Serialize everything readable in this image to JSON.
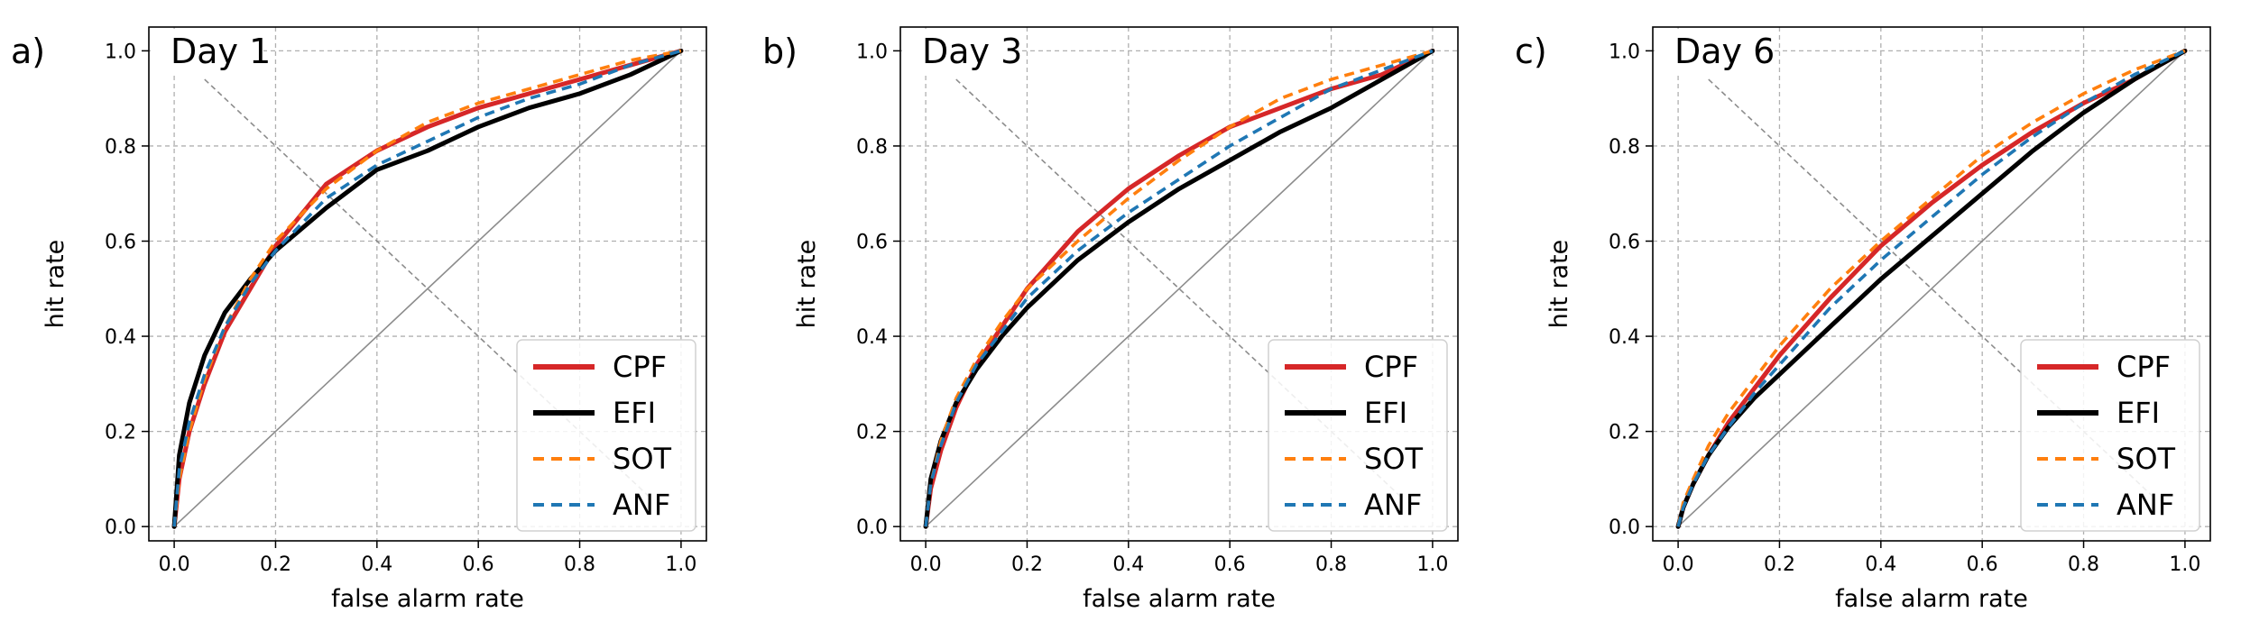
{
  "chart_data": [
    {
      "type": "line",
      "panel_label": "a)",
      "title": "Day 1",
      "xlabel": "false alarm rate",
      "ylabel": "hit rate",
      "xlim": [
        -0.05,
        1.05
      ],
      "ylim": [
        -0.03,
        1.05
      ],
      "xticks": [
        "0.0",
        "0.2",
        "0.4",
        "0.6",
        "0.8",
        "1.0"
      ],
      "yticks": [
        "0.0",
        "0.2",
        "0.4",
        "0.6",
        "0.8",
        "1.0"
      ],
      "grid": true,
      "legend_position": "lower right",
      "series": [
        {
          "name": "CPF",
          "color": "#d62728",
          "style": "solid",
          "x": [
            0,
            0.01,
            0.03,
            0.06,
            0.1,
            0.15,
            0.2,
            0.3,
            0.4,
            0.5,
            0.6,
            0.7,
            0.8,
            0.9,
            1.0
          ],
          "y": [
            0,
            0.1,
            0.2,
            0.3,
            0.41,
            0.5,
            0.59,
            0.72,
            0.79,
            0.84,
            0.88,
            0.91,
            0.94,
            0.97,
            1.0
          ]
        },
        {
          "name": "EFI",
          "color": "#000000",
          "style": "solid",
          "x": [
            0,
            0.01,
            0.03,
            0.06,
            0.1,
            0.15,
            0.2,
            0.3,
            0.4,
            0.5,
            0.6,
            0.7,
            0.8,
            0.9,
            1.0
          ],
          "y": [
            0,
            0.15,
            0.26,
            0.36,
            0.45,
            0.52,
            0.58,
            0.67,
            0.75,
            0.79,
            0.84,
            0.88,
            0.91,
            0.95,
            1.0
          ]
        },
        {
          "name": "SOT",
          "color": "#ff7f0e",
          "style": "dashed",
          "x": [
            0,
            0.01,
            0.03,
            0.06,
            0.1,
            0.15,
            0.2,
            0.3,
            0.4,
            0.5,
            0.6,
            0.7,
            0.8,
            0.9,
            1.0
          ],
          "y": [
            0,
            0.1,
            0.2,
            0.31,
            0.42,
            0.52,
            0.6,
            0.71,
            0.79,
            0.85,
            0.89,
            0.92,
            0.95,
            0.98,
            1.0
          ]
        },
        {
          "name": "ANF",
          "color": "#1f77b4",
          "style": "dashed",
          "x": [
            0,
            0.01,
            0.03,
            0.06,
            0.1,
            0.15,
            0.2,
            0.3,
            0.4,
            0.5,
            0.6,
            0.7,
            0.8,
            0.9,
            1.0
          ],
          "y": [
            0,
            0.12,
            0.22,
            0.32,
            0.42,
            0.51,
            0.58,
            0.69,
            0.76,
            0.81,
            0.86,
            0.9,
            0.93,
            0.97,
            1.0
          ]
        }
      ]
    },
    {
      "type": "line",
      "panel_label": "b)",
      "title": "Day 3",
      "xlabel": "false alarm rate",
      "ylabel": "hit rate",
      "xlim": [
        -0.05,
        1.05
      ],
      "ylim": [
        -0.03,
        1.05
      ],
      "xticks": [
        "0.0",
        "0.2",
        "0.4",
        "0.6",
        "0.8",
        "1.0"
      ],
      "yticks": [
        "0.0",
        "0.2",
        "0.4",
        "0.6",
        "0.8",
        "1.0"
      ],
      "grid": true,
      "legend_position": "lower right",
      "series": [
        {
          "name": "CPF",
          "color": "#d62728",
          "style": "solid",
          "x": [
            0,
            0.01,
            0.03,
            0.06,
            0.1,
            0.15,
            0.2,
            0.3,
            0.4,
            0.5,
            0.6,
            0.7,
            0.8,
            0.9,
            1.0
          ],
          "y": [
            0,
            0.08,
            0.16,
            0.25,
            0.34,
            0.42,
            0.5,
            0.62,
            0.71,
            0.78,
            0.84,
            0.88,
            0.92,
            0.95,
            1.0
          ]
        },
        {
          "name": "EFI",
          "color": "#000000",
          "style": "solid",
          "x": [
            0,
            0.01,
            0.03,
            0.06,
            0.1,
            0.15,
            0.2,
            0.3,
            0.4,
            0.5,
            0.6,
            0.7,
            0.8,
            0.9,
            1.0
          ],
          "y": [
            0,
            0.1,
            0.18,
            0.26,
            0.33,
            0.4,
            0.46,
            0.56,
            0.64,
            0.71,
            0.77,
            0.83,
            0.88,
            0.94,
            1.0
          ]
        },
        {
          "name": "SOT",
          "color": "#ff7f0e",
          "style": "dashed",
          "x": [
            0,
            0.01,
            0.03,
            0.06,
            0.1,
            0.15,
            0.2,
            0.3,
            0.4,
            0.5,
            0.6,
            0.7,
            0.8,
            0.9,
            1.0
          ],
          "y": [
            0,
            0.09,
            0.18,
            0.27,
            0.35,
            0.43,
            0.5,
            0.6,
            0.69,
            0.77,
            0.84,
            0.9,
            0.94,
            0.97,
            1.0
          ]
        },
        {
          "name": "ANF",
          "color": "#1f77b4",
          "style": "dashed",
          "x": [
            0,
            0.01,
            0.03,
            0.06,
            0.1,
            0.15,
            0.2,
            0.3,
            0.4,
            0.5,
            0.6,
            0.7,
            0.8,
            0.9,
            1.0
          ],
          "y": [
            0,
            0.09,
            0.17,
            0.26,
            0.34,
            0.41,
            0.48,
            0.58,
            0.66,
            0.73,
            0.8,
            0.86,
            0.92,
            0.96,
            1.0
          ]
        }
      ]
    },
    {
      "type": "line",
      "panel_label": "c)",
      "title": "Day 6",
      "xlabel": "false alarm rate",
      "ylabel": "hit rate",
      "xlim": [
        -0.05,
        1.05
      ],
      "ylim": [
        -0.03,
        1.05
      ],
      "xticks": [
        "0.0",
        "0.2",
        "0.4",
        "0.6",
        "0.8",
        "1.0"
      ],
      "yticks": [
        "0.0",
        "0.2",
        "0.4",
        "0.6",
        "0.8",
        "1.0"
      ],
      "grid": true,
      "legend_position": "lower right",
      "series": [
        {
          "name": "CPF",
          "color": "#d62728",
          "style": "solid",
          "x": [
            0,
            0.01,
            0.03,
            0.06,
            0.1,
            0.15,
            0.2,
            0.3,
            0.4,
            0.5,
            0.6,
            0.7,
            0.8,
            0.9,
            1.0
          ],
          "y": [
            0,
            0.04,
            0.09,
            0.15,
            0.22,
            0.29,
            0.36,
            0.48,
            0.59,
            0.68,
            0.76,
            0.83,
            0.89,
            0.94,
            1.0
          ]
        },
        {
          "name": "EFI",
          "color": "#000000",
          "style": "solid",
          "x": [
            0,
            0.01,
            0.03,
            0.06,
            0.1,
            0.15,
            0.2,
            0.3,
            0.4,
            0.5,
            0.6,
            0.7,
            0.8,
            0.9,
            1.0
          ],
          "y": [
            0,
            0.04,
            0.09,
            0.15,
            0.21,
            0.27,
            0.32,
            0.42,
            0.52,
            0.61,
            0.7,
            0.79,
            0.87,
            0.94,
            1.0
          ]
        },
        {
          "name": "SOT",
          "color": "#ff7f0e",
          "style": "dashed",
          "x": [
            0,
            0.01,
            0.03,
            0.06,
            0.1,
            0.15,
            0.2,
            0.3,
            0.4,
            0.5,
            0.6,
            0.7,
            0.8,
            0.9,
            1.0
          ],
          "y": [
            0,
            0.05,
            0.1,
            0.17,
            0.24,
            0.31,
            0.38,
            0.5,
            0.6,
            0.69,
            0.78,
            0.85,
            0.91,
            0.96,
            1.0
          ]
        },
        {
          "name": "ANF",
          "color": "#1f77b4",
          "style": "dashed",
          "x": [
            0,
            0.01,
            0.03,
            0.06,
            0.1,
            0.15,
            0.2,
            0.3,
            0.4,
            0.5,
            0.6,
            0.7,
            0.8,
            0.9,
            1.0
          ],
          "y": [
            0,
            0.04,
            0.09,
            0.15,
            0.21,
            0.28,
            0.34,
            0.46,
            0.56,
            0.65,
            0.74,
            0.82,
            0.89,
            0.95,
            1.0
          ]
        }
      ]
    }
  ]
}
